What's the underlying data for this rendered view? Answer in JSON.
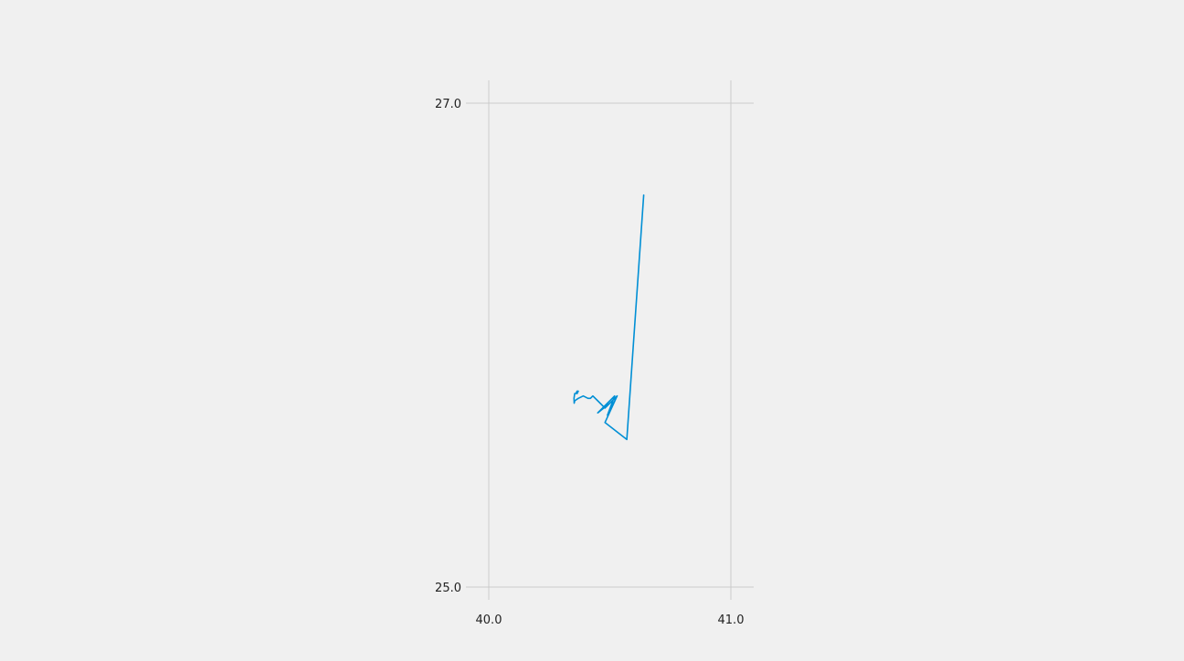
{
  "colors": {
    "background": "#f0f0f0",
    "series": "#008fd5",
    "grid": "#cbcbcb",
    "text": "#222222"
  },
  "chart_data": {
    "type": "line",
    "title": "",
    "xlabel": "",
    "ylabel": "",
    "xlim": [
      40.0,
      41.1
    ],
    "ylim": [
      24.95,
      27.1
    ],
    "grid": true,
    "legend": "none",
    "x_ticks": [
      40.0,
      41.0
    ],
    "x_tick_labels": [
      "40.0",
      "41.0"
    ],
    "y_ticks": [
      25.0,
      27.0
    ],
    "y_tick_labels": [
      "25.0",
      "27.0"
    ],
    "series": [
      {
        "x": [
          40.64,
          40.57,
          40.48,
          40.53,
          40.49,
          40.52,
          40.45,
          40.5,
          40.53,
          40.48,
          40.45,
          40.43,
          40.42,
          40.41,
          40.39,
          40.37,
          40.355,
          40.353,
          40.352,
          40.355,
          40.36,
          40.365,
          40.37,
          40.365
        ],
        "y": [
          26.62,
          25.61,
          25.68,
          25.79,
          25.71,
          25.79,
          25.72,
          25.76,
          25.79,
          25.74,
          25.77,
          25.79,
          25.78,
          25.78,
          25.79,
          25.78,
          25.77,
          25.76,
          25.78,
          25.8,
          25.8,
          25.81,
          25.81,
          25.8
        ]
      }
    ]
  }
}
